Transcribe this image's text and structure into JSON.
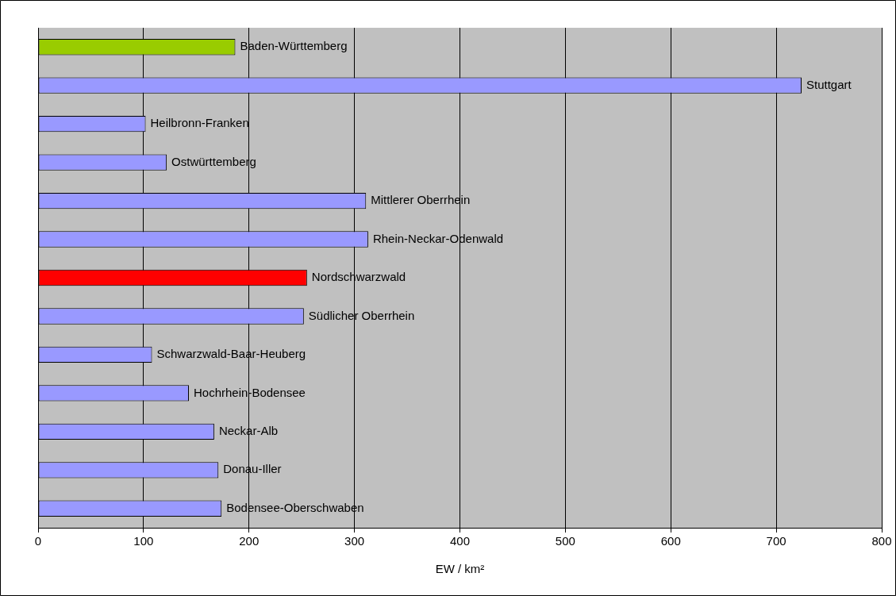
{
  "chart_data": {
    "type": "bar",
    "orientation": "horizontal",
    "xlabel": "EW / km²",
    "categories": [
      "Baden-Württemberg",
      "Stuttgart",
      "Heilbronn-Franken",
      "Ostwürttemberg",
      "Mittlerer Oberrhein",
      "Rhein-Neckar-Odenwald",
      "Nordschwarzwald",
      "Südlicher Oberrhein",
      "Schwarzwald-Baar-Heuberg",
      "Hochrhein-Bodensee",
      "Neckar-Alb",
      "Donau-Iller",
      "Bodensee-Oberschwaben"
    ],
    "values": [
      187,
      724,
      102,
      122,
      311,
      313,
      255,
      252,
      108,
      143,
      167,
      171,
      174
    ],
    "colors": [
      "#99cc00",
      "#9999ff",
      "#9999ff",
      "#9999ff",
      "#9999ff",
      "#9999ff",
      "#ff0000",
      "#9999ff",
      "#9999ff",
      "#9999ff",
      "#9999ff",
      "#9999ff",
      "#9999ff"
    ],
    "xlim": [
      0,
      800
    ],
    "xticks": [
      0,
      100,
      200,
      300,
      400,
      500,
      600,
      700,
      800
    ],
    "grid": "x",
    "legend": false,
    "tick_labels": "x"
  }
}
